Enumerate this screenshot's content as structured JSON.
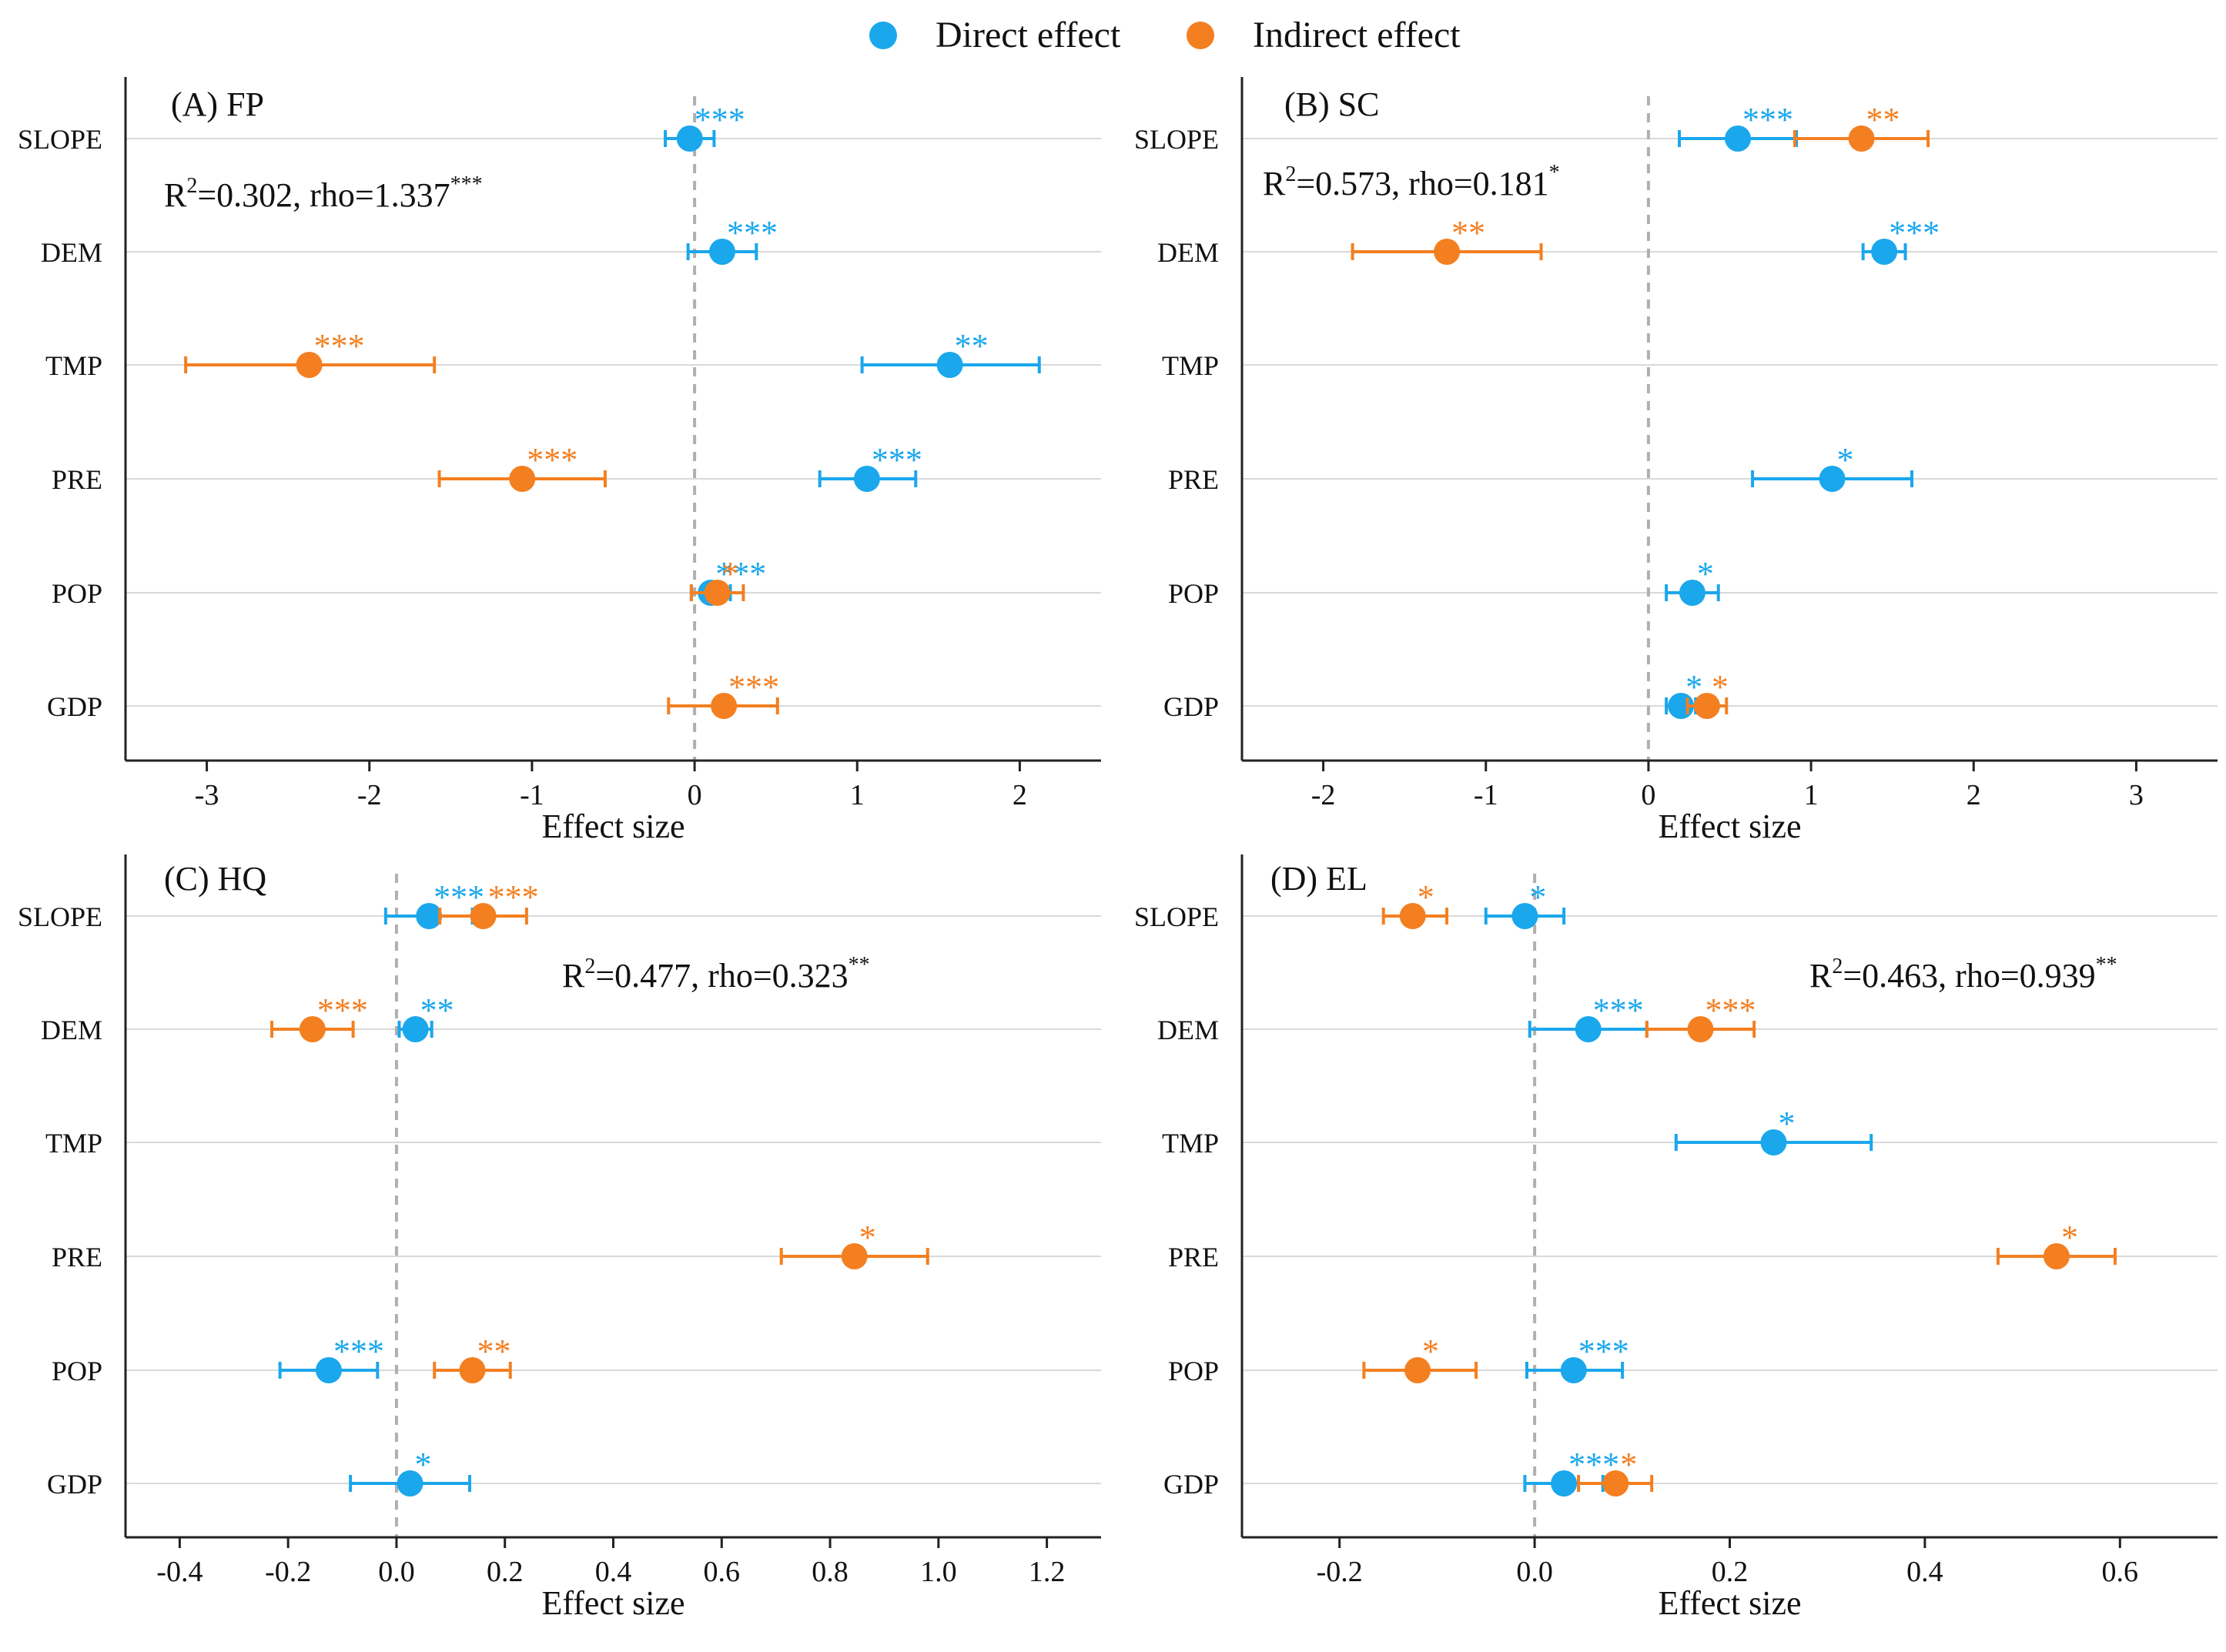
{
  "colors": {
    "direct": "#1aa7ec",
    "indirect": "#f47f20",
    "axis": "#222222",
    "grid": "#d9d9d9",
    "zero_line": "#b0b0b0"
  },
  "legend": {
    "direct_label": "Direct effect",
    "indirect_label": "Indirect effect"
  },
  "chart_data": [
    {
      "type": "scatter",
      "title": "(A) FP",
      "xlabel": "Effect size",
      "xlim": [
        -3.5,
        2.5
      ],
      "xticks": [
        -3,
        -2,
        -1,
        0,
        1,
        2
      ],
      "xtick_labels": [
        "-3",
        "-2",
        "-1",
        "0",
        "1",
        "2"
      ],
      "categories": [
        "SLOPE",
        "DEM",
        "TMP",
        "PRE",
        "POP",
        "GDP"
      ],
      "stat": {
        "base": "R",
        "sup": "2",
        "text": "=0.302, rho=1.337",
        "stars": "***"
      },
      "series": [
        {
          "name": "Direct effect",
          "points": [
            {
              "cat": "SLOPE",
              "est": -0.03,
              "lo": -0.18,
              "hi": 0.12,
              "sig": "***"
            },
            {
              "cat": "DEM",
              "est": 0.17,
              "lo": -0.04,
              "hi": 0.38,
              "sig": "***"
            },
            {
              "cat": "TMP",
              "est": 1.57,
              "lo": 1.03,
              "hi": 2.12,
              "sig": "**"
            },
            {
              "cat": "PRE",
              "est": 1.06,
              "lo": 0.77,
              "hi": 1.36,
              "sig": "***"
            },
            {
              "cat": "POP",
              "est": 0.1,
              "lo": -0.02,
              "hi": 0.22,
              "sig": "***"
            }
          ]
        },
        {
          "name": "Indirect effect",
          "points": [
            {
              "cat": "TMP",
              "est": -2.37,
              "lo": -3.13,
              "hi": -1.6,
              "sig": "***"
            },
            {
              "cat": "PRE",
              "est": -1.06,
              "lo": -1.57,
              "hi": -0.55,
              "sig": "***"
            },
            {
              "cat": "POP",
              "est": 0.14,
              "lo": -0.02,
              "hi": 0.3,
              "sig": "*"
            },
            {
              "cat": "GDP",
              "est": 0.18,
              "lo": -0.16,
              "hi": 0.51,
              "sig": "***"
            }
          ]
        }
      ]
    },
    {
      "type": "scatter",
      "title": "(B) SC",
      "xlabel": "Effect size",
      "xlim": [
        -2.5,
        3.5
      ],
      "xticks": [
        -2,
        -1,
        0,
        1,
        2,
        3
      ],
      "xtick_labels": [
        "-2",
        "-1",
        "0",
        "1",
        "2",
        "3"
      ],
      "categories": [
        "SLOPE",
        "DEM",
        "TMP",
        "PRE",
        "POP",
        "GDP"
      ],
      "stat": {
        "base": "R",
        "sup": "2",
        "text": "=0.573, rho=0.181",
        "stars": "*"
      },
      "series": [
        {
          "name": "Direct effect",
          "points": [
            {
              "cat": "SLOPE",
              "est": 0.55,
              "lo": 0.19,
              "hi": 0.91,
              "sig": "***"
            },
            {
              "cat": "DEM",
              "est": 1.45,
              "lo": 1.32,
              "hi": 1.58,
              "sig": "***"
            },
            {
              "cat": "PRE",
              "est": 1.13,
              "lo": 0.64,
              "hi": 1.62,
              "sig": "*"
            },
            {
              "cat": "POP",
              "est": 0.27,
              "lo": 0.11,
              "hi": 0.43,
              "sig": "*"
            },
            {
              "cat": "GDP",
              "est": 0.2,
              "lo": 0.11,
              "hi": 0.29,
              "sig": "*"
            }
          ]
        },
        {
          "name": "Indirect effect",
          "points": [
            {
              "cat": "SLOPE",
              "est": 1.31,
              "lo": 0.9,
              "hi": 1.72,
              "sig": "**"
            },
            {
              "cat": "DEM",
              "est": -1.24,
              "lo": -1.82,
              "hi": -0.66,
              "sig": "**"
            },
            {
              "cat": "GDP",
              "est": 0.36,
              "lo": 0.24,
              "hi": 0.48,
              "sig": "*"
            }
          ]
        }
      ]
    },
    {
      "type": "scatter",
      "title": "(C) HQ",
      "xlabel": "Effect size",
      "xlim": [
        -0.5,
        1.3
      ],
      "xticks": [
        -0.4,
        -0.2,
        0.0,
        0.2,
        0.4,
        0.6,
        0.8,
        1.0,
        1.2
      ],
      "xtick_labels": [
        "-0.4",
        "-0.2",
        "0.0",
        "0.2",
        "0.4",
        "0.6",
        "0.8",
        "1.0",
        "1.2"
      ],
      "categories": [
        "SLOPE",
        "DEM",
        "TMP",
        "PRE",
        "POP",
        "GDP"
      ],
      "stat": {
        "base": "R",
        "sup": "2",
        "text": "=0.477, rho=0.323",
        "stars": "**"
      },
      "series": [
        {
          "name": "Direct effect",
          "points": [
            {
              "cat": "SLOPE",
              "est": 0.06,
              "lo": -0.02,
              "hi": 0.14,
              "sig": "***"
            },
            {
              "cat": "DEM",
              "est": 0.035,
              "lo": 0.005,
              "hi": 0.065,
              "sig": "**"
            },
            {
              "cat": "POP",
              "est": -0.125,
              "lo": -0.215,
              "hi": -0.035,
              "sig": "***"
            },
            {
              "cat": "GDP",
              "est": 0.025,
              "lo": -0.085,
              "hi": 0.135,
              "sig": "*"
            }
          ]
        },
        {
          "name": "Indirect effect",
          "points": [
            {
              "cat": "SLOPE",
              "est": 0.16,
              "lo": 0.08,
              "hi": 0.24,
              "sig": "***"
            },
            {
              "cat": "DEM",
              "est": -0.155,
              "lo": -0.23,
              "hi": -0.08,
              "sig": "***"
            },
            {
              "cat": "PRE",
              "est": 0.845,
              "lo": 0.71,
              "hi": 0.98,
              "sig": "*"
            },
            {
              "cat": "POP",
              "est": 0.14,
              "lo": 0.07,
              "hi": 0.21,
              "sig": "**"
            }
          ]
        }
      ]
    },
    {
      "type": "scatter",
      "title": "(D) EL",
      "xlabel": "Effect size",
      "xlim": [
        -0.3,
        0.7
      ],
      "xticks": [
        -0.2,
        0.0,
        0.2,
        0.4,
        0.6
      ],
      "xtick_labels": [
        "-0.2",
        "0.0",
        "0.2",
        "0.4",
        "0.6"
      ],
      "categories": [
        "SLOPE",
        "DEM",
        "TMP",
        "PRE",
        "POP",
        "GDP"
      ],
      "stat": {
        "base": "R",
        "sup": "2",
        "text": "=0.463, rho=0.939",
        "stars": "**"
      },
      "series": [
        {
          "name": "Direct effect",
          "points": [
            {
              "cat": "SLOPE",
              "est": -0.01,
              "lo": -0.05,
              "hi": 0.03,
              "sig": "*"
            },
            {
              "cat": "DEM",
              "est": 0.055,
              "lo": -0.005,
              "hi": 0.115,
              "sig": "***"
            },
            {
              "cat": "TMP",
              "est": 0.245,
              "lo": 0.145,
              "hi": 0.345,
              "sig": "*"
            },
            {
              "cat": "POP",
              "est": 0.04,
              "lo": -0.008,
              "hi": 0.09,
              "sig": "***"
            },
            {
              "cat": "GDP",
              "est": 0.03,
              "lo": -0.01,
              "hi": 0.07,
              "sig": "***"
            }
          ]
        },
        {
          "name": "Indirect effect",
          "points": [
            {
              "cat": "SLOPE",
              "est": -0.125,
              "lo": -0.155,
              "hi": -0.09,
              "sig": "*"
            },
            {
              "cat": "DEM",
              "est": 0.17,
              "lo": 0.115,
              "hi": 0.225,
              "sig": "***"
            },
            {
              "cat": "PRE",
              "est": 0.535,
              "lo": 0.475,
              "hi": 0.595,
              "sig": "*"
            },
            {
              "cat": "POP",
              "est": -0.12,
              "lo": -0.175,
              "hi": -0.06,
              "sig": "*"
            },
            {
              "cat": "GDP",
              "est": 0.083,
              "lo": 0.045,
              "hi": 0.12,
              "sig": "*"
            }
          ]
        }
      ]
    }
  ]
}
